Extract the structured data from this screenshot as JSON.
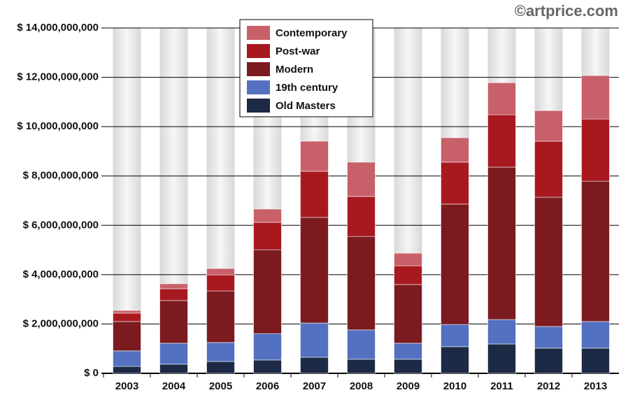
{
  "chart_data": {
    "type": "stacked_bar",
    "watermark": "©artprice.com",
    "categories": [
      "2003",
      "2004",
      "2005",
      "2006",
      "2007",
      "2008",
      "2009",
      "2010",
      "2011",
      "2012",
      "2013"
    ],
    "series": [
      {
        "name": "Old Masters",
        "color": "#1c2a45",
        "values": [
          280000000,
          370000000,
          480000000,
          540000000,
          650000000,
          570000000,
          570000000,
          1080000000,
          1190000000,
          1020000000,
          1020000000
        ]
      },
      {
        "name": "19th century",
        "color": "#5470c0",
        "values": [
          630000000,
          850000000,
          770000000,
          1070000000,
          1390000000,
          1190000000,
          650000000,
          900000000,
          990000000,
          880000000,
          1080000000
        ]
      },
      {
        "name": "Modern",
        "color": "#7b1a1f",
        "values": [
          1190000000,
          1730000000,
          2090000000,
          3400000000,
          4280000000,
          3790000000,
          2380000000,
          4880000000,
          6180000000,
          5240000000,
          5690000000
        ]
      },
      {
        "name": "Post-war",
        "color": "#a8191f",
        "values": [
          340000000,
          480000000,
          650000000,
          1110000000,
          1870000000,
          1620000000,
          760000000,
          1700000000,
          2120000000,
          2270000000,
          2520000000
        ]
      },
      {
        "name": "Contemporary",
        "color": "#c8606a",
        "values": [
          110000000,
          200000000,
          260000000,
          540000000,
          1220000000,
          1390000000,
          510000000,
          990000000,
          1300000000,
          1240000000,
          1760000000
        ]
      }
    ],
    "ylim": [
      0,
      14000000000
    ],
    "yticks": [
      {
        "value": 0,
        "label": "$ 0"
      },
      {
        "value": 2000000000,
        "label": "$ 2,000,000,000"
      },
      {
        "value": 4000000000,
        "label": "$ 4,000,000,000"
      },
      {
        "value": 6000000000,
        "label": "$ 6,000,000,000"
      },
      {
        "value": 8000000000,
        "label": "$ 8,000,000,000"
      },
      {
        "value": 10000000000,
        "label": "$ 10,000,000,000"
      },
      {
        "value": 12000000000,
        "label": "$ 12,000,000,000"
      },
      {
        "value": 14000000000,
        "label": "$ 14,000,000,000"
      }
    ],
    "grid": true,
    "legend": "top"
  }
}
